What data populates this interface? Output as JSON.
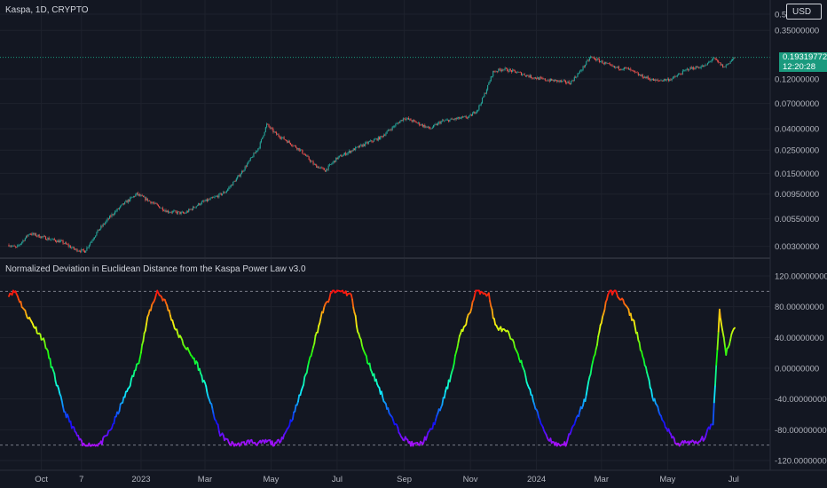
{
  "header": {
    "symbol_title": "Kaspa, 1D, CRYPTO",
    "currency": "USD"
  },
  "indicator": {
    "title": "Normalized Deviation in Euclidean Distance from the Kaspa Power Law v3.0"
  },
  "price_badge": {
    "price": "0.19319772",
    "countdown": "12:20:28",
    "color": "#1a9a7e"
  },
  "colors": {
    "background": "#131722",
    "grid": "#1e222d",
    "text": "#d1d4dc",
    "candle_up": "#26a69a",
    "candle_down": "#ef5350",
    "ref_line": "#787b86"
  },
  "chart_data": [
    {
      "type": "candlestick",
      "title": "Kaspa, 1D, CRYPTO",
      "y_scale": "log",
      "ylim": [
        0.0025,
        0.5
      ],
      "y_ticks": [
        "0.50000000",
        "0.35000000",
        "0.12000000",
        "0.07000000",
        "0.04000000",
        "0.02500000",
        "0.01500000",
        "0.00950000",
        "0.00550000",
        "0.00300000"
      ],
      "last_price": 0.19319772,
      "x_range": [
        "2022-09-01",
        "2024-07-02"
      ],
      "x_ticks": [
        "Oct",
        "7",
        "2023",
        "Mar",
        "May",
        "Jul",
        "Sep",
        "Nov",
        "2024",
        "Mar",
        "May",
        "Jul"
      ],
      "grid": true,
      "close_path": [
        [
          "2022-09-01",
          0.0031
        ],
        [
          "2022-09-08",
          0.0029
        ],
        [
          "2022-09-20",
          0.004
        ],
        [
          "2022-10-05",
          0.0036
        ],
        [
          "2022-10-20",
          0.0033
        ],
        [
          "2022-11-01",
          0.0028
        ],
        [
          "2022-11-10",
          0.0027
        ],
        [
          "2022-11-22",
          0.0042
        ],
        [
          "2022-12-05",
          0.006
        ],
        [
          "2022-12-15",
          0.0075
        ],
        [
          "2022-12-28",
          0.0095
        ],
        [
          "2023-01-10",
          0.008
        ],
        [
          "2023-01-25",
          0.0065
        ],
        [
          "2023-02-10",
          0.0062
        ],
        [
          "2023-02-25",
          0.0078
        ],
        [
          "2023-03-10",
          0.0088
        ],
        [
          "2023-03-20",
          0.01
        ],
        [
          "2023-04-01",
          0.014
        ],
        [
          "2023-04-10",
          0.019
        ],
        [
          "2023-04-20",
          0.027
        ],
        [
          "2023-04-27",
          0.044
        ],
        [
          "2023-05-05",
          0.036
        ],
        [
          "2023-05-15",
          0.031
        ],
        [
          "2023-05-28",
          0.025
        ],
        [
          "2023-06-10",
          0.018
        ],
        [
          "2023-06-20",
          0.016
        ],
        [
          "2023-07-01",
          0.021
        ],
        [
          "2023-07-15",
          0.025
        ],
        [
          "2023-07-28",
          0.029
        ],
        [
          "2023-08-10",
          0.033
        ],
        [
          "2023-08-22",
          0.042
        ],
        [
          "2023-09-01",
          0.051
        ],
        [
          "2023-09-12",
          0.046
        ],
        [
          "2023-09-25",
          0.04
        ],
        [
          "2023-10-05",
          0.047
        ],
        [
          "2023-10-20",
          0.05
        ],
        [
          "2023-10-31",
          0.052
        ],
        [
          "2023-11-08",
          0.062
        ],
        [
          "2023-11-15",
          0.09
        ],
        [
          "2023-11-22",
          0.14
        ],
        [
          "2023-12-01",
          0.15
        ],
        [
          "2023-12-15",
          0.138
        ],
        [
          "2023-12-28",
          0.125
        ],
        [
          "2024-01-08",
          0.118
        ],
        [
          "2024-01-20",
          0.115
        ],
        [
          "2024-02-01",
          0.11
        ],
        [
          "2024-02-10",
          0.14
        ],
        [
          "2024-02-20",
          0.195
        ],
        [
          "2024-03-01",
          0.175
        ],
        [
          "2024-03-12",
          0.155
        ],
        [
          "2024-03-25",
          0.15
        ],
        [
          "2024-04-05",
          0.13
        ],
        [
          "2024-04-20",
          0.115
        ],
        [
          "2024-05-05",
          0.12
        ],
        [
          "2024-05-20",
          0.15
        ],
        [
          "2024-06-05",
          0.16
        ],
        [
          "2024-06-12",
          0.19
        ],
        [
          "2024-06-22",
          0.155
        ],
        [
          "2024-07-02",
          0.1932
        ]
      ]
    },
    {
      "type": "line",
      "title": "Normalized Deviation in Euclidean Distance from the Kaspa Power Law v3.0",
      "ylim": [
        -120,
        120
      ],
      "y_ticks": [
        "120.00000000",
        "80.00000000",
        "40.00000000",
        "0.00000000",
        "-40.00000000",
        "-80.00000000",
        "-120.00000000"
      ],
      "reference_lines": [
        100,
        -100
      ],
      "color_scale": "rainbow by value: violet (-100) → blue → cyan → green → yellow → orange → red (+100)",
      "x_range": [
        "2022-09-01",
        "2024-07-02"
      ],
      "series": [
        {
          "x": [
            "2022-09-01",
            "2022-09-07",
            "2022-09-16",
            "2022-09-22",
            "2022-10-04",
            "2022-10-13",
            "2022-10-22",
            "2022-10-31",
            "2022-11-08",
            "2022-11-16",
            "2022-11-25",
            "2022-12-04",
            "2022-12-13",
            "2022-12-22",
            "2022-12-30",
            "2023-01-08",
            "2023-01-16",
            "2023-01-24",
            "2023-02-02",
            "2023-02-10",
            "2023-02-22",
            "2023-03-03",
            "2023-03-09",
            "2023-03-15",
            "2023-03-24",
            "2023-04-02",
            "2023-04-11",
            "2023-04-20",
            "2023-04-29",
            "2023-05-05",
            "2023-05-14",
            "2023-05-22",
            "2023-05-31",
            "2023-06-09",
            "2023-06-18",
            "2023-06-27",
            "2023-07-06",
            "2023-07-14",
            "2023-07-20",
            "2023-07-26",
            "2023-08-04",
            "2023-08-13",
            "2023-08-22",
            "2023-08-31",
            "2023-09-09",
            "2023-09-17",
            "2023-09-26",
            "2023-10-05",
            "2023-10-14",
            "2023-10-22",
            "2023-10-31",
            "2023-11-06",
            "2023-11-12",
            "2023-11-18",
            "2023-11-24",
            "2023-12-06",
            "2023-12-15",
            "2023-12-24",
            "2024-01-02",
            "2024-01-11",
            "2024-01-20",
            "2024-01-28",
            "2024-02-06",
            "2024-02-15",
            "2024-02-24",
            "2024-03-01",
            "2024-03-07",
            "2024-03-13",
            "2024-03-22",
            "2024-03-31",
            "2024-04-09",
            "2024-04-18",
            "2024-04-27",
            "2024-05-05",
            "2024-05-11",
            "2024-05-19",
            "2024-05-28",
            "2024-06-04",
            "2024-06-12",
            "2024-06-18",
            "2024-06-24",
            "2024-07-02"
          ],
          "y": [
            97,
            100,
            73,
            60,
            34,
            -10,
            -55,
            -80,
            -100,
            -100,
            -98,
            -80,
            -50,
            -20,
            10,
            70,
            100,
            85,
            50,
            30,
            5,
            -30,
            -60,
            -85,
            -98,
            -100,
            -95,
            -98,
            -95,
            -100,
            -85,
            -60,
            -20,
            30,
            75,
            100,
            100,
            95,
            50,
            20,
            -10,
            -40,
            -70,
            -90,
            -100,
            -98,
            -80,
            -50,
            -10,
            40,
            70,
            100,
            100,
            95,
            55,
            45,
            20,
            -20,
            -60,
            -90,
            -100,
            -98,
            -70,
            -40,
            20,
            60,
            97,
            100,
            85,
            60,
            10,
            -40,
            -70,
            -90,
            -100,
            -95,
            -98,
            -90,
            -70,
            75,
            20,
            55
          ]
        }
      ]
    }
  ]
}
